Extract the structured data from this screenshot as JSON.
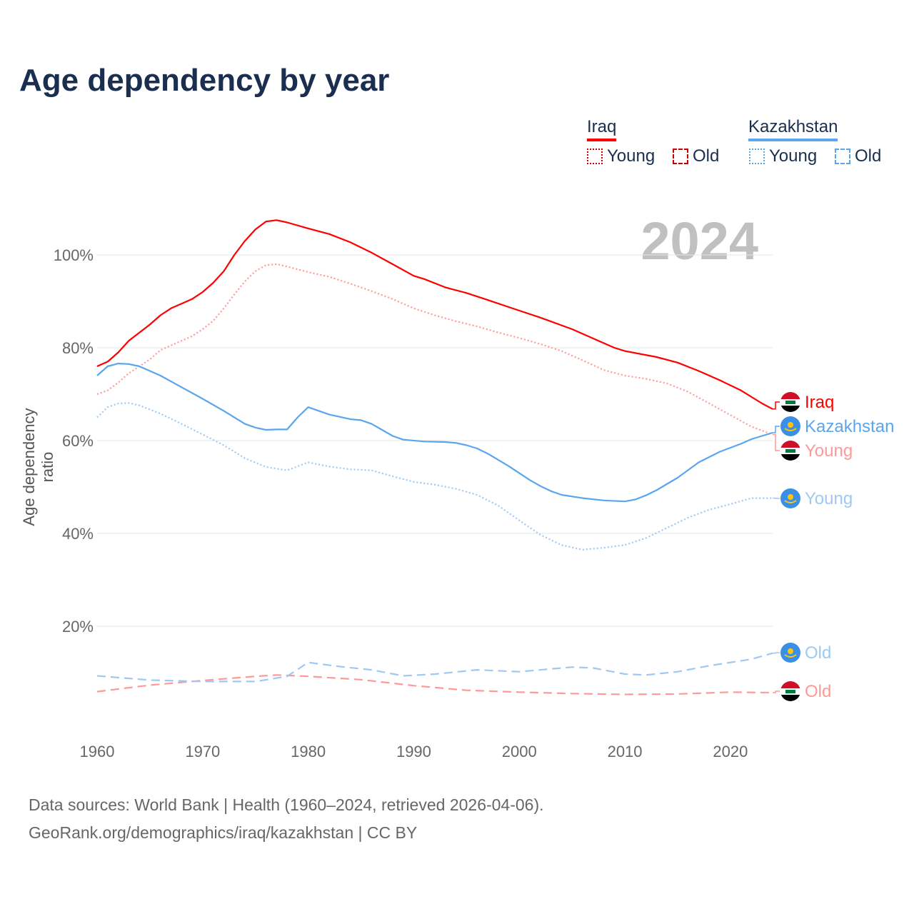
{
  "title": "Age dependency by year",
  "legend": {
    "countries": [
      {
        "name": "Iraq",
        "color": "#ff0000",
        "items": [
          "Young",
          "Old"
        ]
      },
      {
        "name": "Kazakhstan",
        "color": "#5aa5ee",
        "items": [
          "Young",
          "Old"
        ]
      }
    ]
  },
  "year_watermark": "2024",
  "footer": {
    "line1": "Data sources: World Bank | Health (1960–2024, retrieved 2026-04-06).",
    "line2": "GeoRank.org/demographics/iraq/kazakhstan | CC BY"
  },
  "chart_data": {
    "type": "line",
    "title": "Age dependency by year",
    "xlabel": "",
    "ylabel": "Age dependency ratio",
    "xlim": [
      1960,
      2024
    ],
    "ylim": [
      0,
      110
    ],
    "xticks": [
      1960,
      1970,
      1980,
      1990,
      2000,
      2010,
      2020
    ],
    "yticks": [
      {
        "v": 20,
        "label": "20%"
      },
      {
        "v": 40,
        "label": "40%"
      },
      {
        "v": 60,
        "label": "60%"
      },
      {
        "v": 80,
        "label": "80%"
      },
      {
        "v": 100,
        "label": "100%"
      }
    ],
    "grid": true,
    "series": [
      {
        "name": "Iraq",
        "label": "Iraq",
        "color": "#ff0000",
        "style": "solid",
        "flag": "iraq",
        "x": [
          1960,
          1961,
          1962,
          1963,
          1965,
          1966,
          1967,
          1969,
          1970,
          1971,
          1972,
          1973,
          1974,
          1975,
          1976,
          1977,
          1978,
          1980,
          1982,
          1984,
          1986,
          1988,
          1990,
          1991,
          1993,
          1995,
          1997,
          2000,
          2002,
          2005,
          2007,
          2009,
          2010,
          2013,
          2015,
          2017,
          2019,
          2021,
          2023,
          2024
        ],
        "y": [
          76,
          77,
          79,
          81.5,
          85,
          87,
          88.5,
          90.5,
          92,
          94,
          96.5,
          100,
          103,
          105.5,
          107.2,
          107.5,
          107,
          105.7,
          104.5,
          102.7,
          100.5,
          98,
          95.5,
          94.8,
          93,
          91.8,
          90.3,
          88,
          86.5,
          84,
          82,
          80,
          79.3,
          78,
          76.8,
          75,
          73,
          70.8,
          68,
          66.8
        ]
      },
      {
        "name": "Iraq Young",
        "label": "Young",
        "color": "#ff9999",
        "style": "dotted",
        "flag": "iraq",
        "x": [
          1960,
          1961,
          1962,
          1963,
          1965,
          1966,
          1968,
          1969,
          1970,
          1971,
          1972,
          1973,
          1974,
          1975,
          1976,
          1977,
          1978,
          1980,
          1982,
          1984,
          1986,
          1988,
          1990,
          1992,
          1994,
          1996,
          1998,
          2000,
          2002,
          2004,
          2006,
          2008,
          2010,
          2012,
          2014,
          2016,
          2018,
          2020,
          2022,
          2024
        ],
        "y": [
          70,
          70.8,
          72.5,
          74.5,
          77.5,
          79.5,
          81.5,
          82.5,
          84,
          85.8,
          88.5,
          91.5,
          94.3,
          96.5,
          97.8,
          98,
          97.5,
          96.3,
          95.3,
          93.8,
          92.2,
          90.5,
          88.5,
          87,
          85.7,
          84.6,
          83.3,
          82.1,
          80.8,
          79.3,
          77.3,
          75.2,
          74,
          73.3,
          72.3,
          70.5,
          68,
          65.5,
          63,
          61.3
        ]
      },
      {
        "name": "Iraq Old",
        "label": "Old",
        "color": "#ff9999",
        "style": "dashed",
        "flag": "iraq",
        "x": [
          1960,
          1965,
          1970,
          1975,
          1977,
          1980,
          1985,
          1990,
          1995,
          2000,
          2005,
          2010,
          2015,
          2020,
          2024
        ],
        "y": [
          5.9,
          7.3,
          8.3,
          9.2,
          9.5,
          9.2,
          8.5,
          7.2,
          6.2,
          5.8,
          5.5,
          5.3,
          5.4,
          5.8,
          5.7
        ]
      },
      {
        "name": "Kazakhstan",
        "label": "Kazakhstan",
        "color": "#5aa5ee",
        "style": "solid",
        "flag": "kazakhstan",
        "x": [
          1960,
          1961,
          1962,
          1963,
          1964,
          1966,
          1968,
          1970,
          1972,
          1974,
          1975,
          1976,
          1977,
          1978,
          1979,
          1980,
          1982,
          1984,
          1985,
          1986,
          1988,
          1989,
          1991,
          1993,
          1994,
          1995,
          1996,
          1997,
          1999,
          2001,
          2002,
          2003,
          2004,
          2006,
          2008,
          2010,
          2011,
          2012,
          2013,
          2015,
          2017,
          2019,
          2021,
          2022,
          2023,
          2024
        ],
        "y": [
          74,
          76,
          76.6,
          76.5,
          76,
          74,
          71.5,
          69,
          66.4,
          63.6,
          62.8,
          62.3,
          62.4,
          62.4,
          65,
          67.2,
          65.6,
          64.6,
          64.4,
          63.6,
          61,
          60.2,
          59.8,
          59.7,
          59.5,
          59,
          58.3,
          57.2,
          54.5,
          51.5,
          50.2,
          49.1,
          48.3,
          47.6,
          47.1,
          46.9,
          47.3,
          48.2,
          49.3,
          52,
          55.3,
          57.6,
          59.3,
          60.3,
          61,
          61.7
        ]
      },
      {
        "name": "Kazakhstan Young",
        "label": "Young",
        "color": "#9fc8f3",
        "style": "dotted",
        "flag": "kazakhstan",
        "x": [
          1960,
          1961,
          1962,
          1963,
          1964,
          1966,
          1968,
          1970,
          1972,
          1974,
          1976,
          1978,
          1980,
          1982,
          1984,
          1986,
          1988,
          1990,
          1992,
          1994,
          1996,
          1998,
          2000,
          2002,
          2004,
          2006,
          2008,
          2010,
          2012,
          2014,
          2016,
          2018,
          2020,
          2022,
          2024
        ],
        "y": [
          65,
          67.2,
          68,
          68.1,
          67.6,
          65.8,
          63.6,
          61.3,
          59,
          56.2,
          54.3,
          53.6,
          55.3,
          54.4,
          53.8,
          53.6,
          52.3,
          51.1,
          50.5,
          49.6,
          48.3,
          46,
          42.8,
          39.7,
          37.5,
          36.5,
          36.9,
          37.5,
          39,
          41.2,
          43.4,
          45.1,
          46.3,
          47.6,
          47.6
        ]
      },
      {
        "name": "Kazakhstan Old",
        "label": "Old",
        "color": "#9fc8f3",
        "style": "dashed",
        "flag": "kazakhstan",
        "x": [
          1960,
          1965,
          1970,
          1975,
          1978,
          1980,
          1983,
          1986,
          1989,
          1992,
          1996,
          2000,
          2005,
          2007,
          2010,
          2012,
          2015,
          2018,
          2022,
          2024
        ],
        "y": [
          9.3,
          8.4,
          8.1,
          8.1,
          9.2,
          12.2,
          11.3,
          10.6,
          9.3,
          9.7,
          10.6,
          10.2,
          11.2,
          11,
          9.7,
          9.5,
          10.2,
          11.5,
          12.9,
          14.2
        ]
      }
    ]
  }
}
